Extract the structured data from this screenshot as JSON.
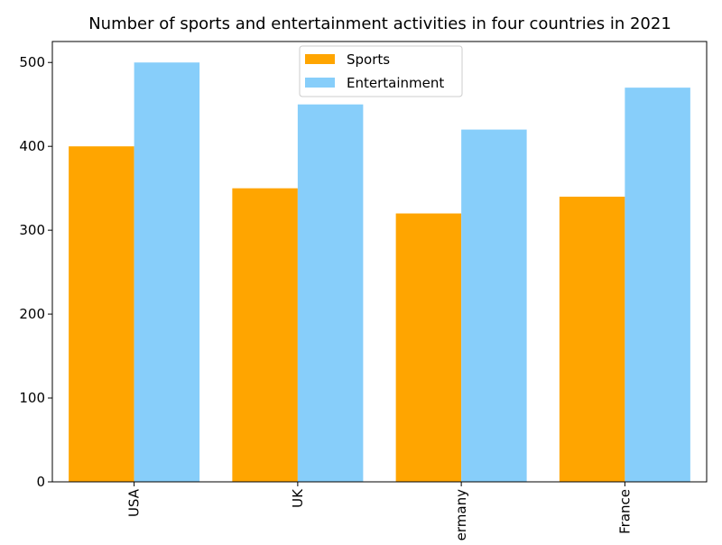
{
  "chart_data": {
    "type": "bar",
    "title": "Number of sports and entertainment activities in four countries in 2021",
    "xlabel": "",
    "ylabel": "",
    "categories": [
      "USA",
      "UK",
      "Germany",
      "France"
    ],
    "series": [
      {
        "name": "Sports",
        "values": [
          400,
          350,
          320,
          340
        ],
        "color": "#FFA500"
      },
      {
        "name": "Entertainment",
        "values": [
          500,
          450,
          420,
          470
        ],
        "color": "#87CEFA"
      }
    ],
    "ylim": [
      0,
      525
    ],
    "yticks": [
      0,
      100,
      200,
      300,
      400,
      500
    ],
    "x_tick_rotation": 90,
    "grid": false,
    "legend_position": "top-center"
  }
}
